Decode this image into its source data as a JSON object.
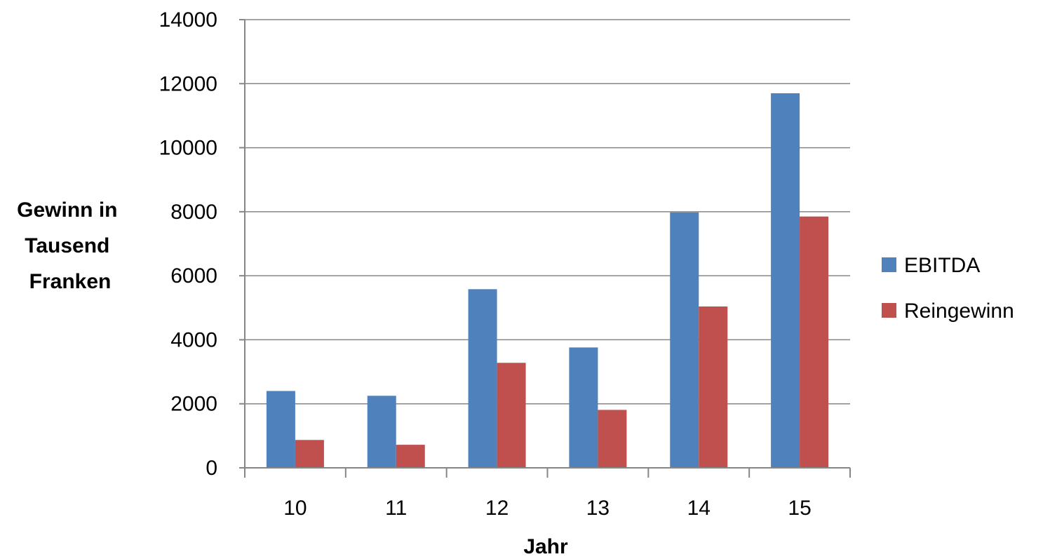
{
  "chart_data": {
    "type": "bar",
    "title": "",
    "xlabel": "Jahr",
    "ylabel": "Gewinn in Tausend Franken",
    "ylabel_lines": [
      "Gewinn in",
      "Tausend",
      "Franken"
    ],
    "categories": [
      "10",
      "11",
      "12",
      "13",
      "14",
      "15"
    ],
    "series": [
      {
        "name": "EBITDA",
        "color": "#4F81BD",
        "values": [
          2400,
          2250,
          5580,
          3760,
          7980,
          11700
        ]
      },
      {
        "name": "Reingewinn",
        "color": "#C0504D",
        "values": [
          870,
          720,
          3280,
          1810,
          5040,
          7850
        ]
      }
    ],
    "ylim": [
      0,
      14000
    ],
    "yticks": [
      "0",
      "2000",
      "4000",
      "6000",
      "8000",
      "10000",
      "12000",
      "14000"
    ],
    "grid": true,
    "legend_position": "right"
  }
}
